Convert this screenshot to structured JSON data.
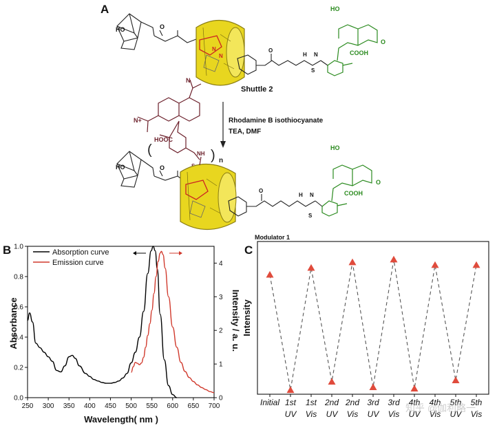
{
  "panelA": {
    "letter": "A",
    "shuttle_label": "Shuttle 2",
    "reagent_line1": "Rhodamine B isothiocyanate",
    "reagent_line2": "TEA, DMF",
    "labels": {
      "ho_top": "HO",
      "ho_bottom": "HO",
      "o_top": "O",
      "o_bottom": "O",
      "cooh_top": "COOH",
      "cooh_bottom": "COOH",
      "hooc": "HOOC",
      "n_sub": "n",
      "nplus": "N+",
      "n_amine": "N",
      "nh": "NH",
      "s_eq": "S=",
      "s_top": "S",
      "s_bottom": "S",
      "h_top": "H",
      "h_bottom": "H",
      "n_top": "N",
      "n_bottom": "N"
    },
    "colors": {
      "macrocycle": "#e8d61f",
      "fluorescein": "#2a8a1e",
      "rhodamine": "#6b1f2a",
      "triazole": "#cc2222"
    }
  },
  "panelB": {
    "letter": "B",
    "chart_data": {
      "type": "line",
      "xlabel": "Wavelength( nm )",
      "ylabel_left": "Absorbance",
      "ylabel_right": "Intensity / a. u.",
      "xlim": [
        250,
        700
      ],
      "ylim_left": [
        0,
        1.0
      ],
      "ylim_right": [
        0,
        4.5
      ],
      "x_ticks": [
        "250",
        "300",
        "350",
        "400",
        "450",
        "500",
        "550",
        "600",
        "650",
        "700"
      ],
      "y_left_ticks": [
        "0.0",
        "0.2",
        "0.4",
        "0.6",
        "0.8",
        "1.0"
      ],
      "y_right_ticks": [
        "0",
        "1",
        "2",
        "3",
        "4"
      ],
      "legend_position": "top-left",
      "series": [
        {
          "name": "Absorption curve",
          "axis": "left",
          "color": "#000000",
          "x": [
            250,
            255,
            262,
            270,
            280,
            290,
            300,
            310,
            320,
            330,
            340,
            350,
            358,
            365,
            375,
            390,
            400,
            410,
            420,
            430,
            440,
            450,
            460,
            470,
            480,
            490,
            500,
            510,
            520,
            530,
            540,
            548,
            553,
            558,
            563,
            570,
            580,
            590,
            600,
            610
          ],
          "y": [
            0.51,
            0.56,
            0.5,
            0.36,
            0.33,
            0.3,
            0.27,
            0.24,
            0.18,
            0.17,
            0.21,
            0.27,
            0.28,
            0.26,
            0.21,
            0.16,
            0.14,
            0.12,
            0.11,
            0.1,
            0.095,
            0.095,
            0.1,
            0.11,
            0.13,
            0.16,
            0.23,
            0.3,
            0.4,
            0.57,
            0.82,
            0.97,
            1.0,
            0.97,
            0.85,
            0.55,
            0.25,
            0.08,
            0.02,
            0.0
          ]
        },
        {
          "name": "Emission curve",
          "axis": "right",
          "color": "#d0382b",
          "x": [
            500,
            505,
            510,
            515,
            520,
            525,
            530,
            535,
            540,
            545,
            550,
            555,
            560,
            565,
            570,
            573,
            577,
            582,
            590,
            600,
            610,
            620,
            630,
            640,
            650,
            660,
            670,
            680,
            690,
            700
          ],
          "y": [
            0.75,
            0.92,
            1.05,
            1.02,
            0.98,
            1.03,
            1.2,
            1.5,
            1.85,
            2.2,
            2.6,
            3.1,
            3.6,
            4.05,
            4.3,
            4.35,
            4.25,
            3.85,
            3.0,
            2.1,
            1.5,
            1.05,
            0.78,
            0.6,
            0.48,
            0.38,
            0.3,
            0.24,
            0.18,
            0.15
          ]
        }
      ]
    }
  },
  "panelC": {
    "letter": "C",
    "chart_data": {
      "type": "line",
      "title": "Modulator 1",
      "ylabel": "Intensity",
      "categories": [
        "Initial",
        "1st UV",
        "1st Vis",
        "2nd UV",
        "2nd Vis",
        "3rd UV",
        "3rd Vis",
        "4th UV",
        "4th Vis",
        "5th UV",
        "5th Vis"
      ],
      "categories_line1": [
        "Initial",
        "1st",
        "1st",
        "2nd",
        "2nd",
        "3rd",
        "3rd",
        "4th",
        "4th",
        "5th",
        "5th"
      ],
      "categories_line2": [
        "",
        "UV",
        "Vis",
        "UV",
        "Vis",
        "UV",
        "Vis",
        "UV",
        "Vis",
        "UV",
        "Vis"
      ],
      "values": [
        0.86,
        0.03,
        0.91,
        0.09,
        0.95,
        0.05,
        0.97,
        0.04,
        0.93,
        0.1,
        0.93
      ],
      "ylim": [
        0,
        1.1
      ],
      "marker_color": "#e04b3c",
      "line_color": "#555555",
      "line_style": "dashed",
      "watermark": "知乎 @伽利略一"
    }
  }
}
